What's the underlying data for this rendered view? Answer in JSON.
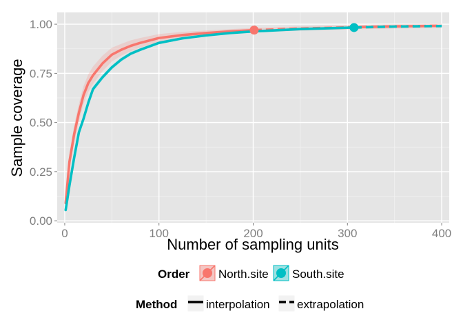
{
  "chart_data": {
    "type": "line",
    "xlabel": "Number of sampling units",
    "ylabel": "Sample coverage",
    "xlim": [
      -8,
      408
    ],
    "ylim": [
      -0.01,
      1.06
    ],
    "x_ticks": [
      0,
      100,
      200,
      300,
      400
    ],
    "x_tick_labels": [
      "0",
      "100",
      "200",
      "300",
      "400"
    ],
    "y_ticks": [
      0,
      0.25,
      0.5,
      0.75,
      1.0
    ],
    "y_tick_labels": [
      "0.00",
      "0.25",
      "0.50",
      "0.75",
      "1.00"
    ],
    "grid": true,
    "legend_placement": "bottom",
    "legends": {
      "order": {
        "title": "Order",
        "items": [
          "North.site",
          "South.site"
        ]
      },
      "method": {
        "title": "Method",
        "items": [
          "interpolation",
          "extrapolation"
        ]
      }
    },
    "series": [
      {
        "name": "North.site",
        "color": "#f8766d",
        "observed": {
          "x": 201,
          "y": 0.97
        },
        "interpolation": {
          "x": [
            1,
            5,
            10,
            15,
            20,
            25,
            30,
            40,
            50,
            60,
            70,
            80,
            100,
            125,
            150,
            175,
            201
          ],
          "y": [
            0.09,
            0.3,
            0.44,
            0.55,
            0.64,
            0.7,
            0.74,
            0.8,
            0.845,
            0.87,
            0.89,
            0.905,
            0.93,
            0.945,
            0.955,
            0.963,
            0.97
          ]
        },
        "extrapolation": {
          "x": [
            201,
            250,
            300,
            350,
            400
          ],
          "y": [
            0.97,
            0.978,
            0.984,
            0.989,
            0.992
          ]
        },
        "ci_halfwidth": [
          0.03,
          0.04,
          0.045,
          0.045,
          0.045,
          0.045,
          0.045,
          0.04,
          0.035,
          0.03,
          0.028,
          0.025,
          0.02,
          0.016,
          0.013,
          0.012,
          0.011
        ]
      },
      {
        "name": "South.site",
        "color": "#00bfc4",
        "observed": {
          "x": 307,
          "y": 0.983
        },
        "interpolation": {
          "x": [
            1,
            5,
            10,
            15,
            20,
            25,
            30,
            40,
            50,
            60,
            70,
            80,
            100,
            125,
            150,
            175,
            200,
            250,
            307
          ],
          "y": [
            0.055,
            0.18,
            0.32,
            0.45,
            0.52,
            0.6,
            0.67,
            0.73,
            0.78,
            0.82,
            0.85,
            0.87,
            0.905,
            0.928,
            0.943,
            0.955,
            0.963,
            0.975,
            0.983
          ]
        },
        "extrapolation": {
          "x": [
            307,
            350,
            400
          ],
          "y": [
            0.983,
            0.988,
            0.991
          ]
        },
        "ci_halfwidth": [
          0.012,
          0.015,
          0.015,
          0.015,
          0.015,
          0.014,
          0.013,
          0.012,
          0.011,
          0.01,
          0.009,
          0.008,
          0.007,
          0.006,
          0.005,
          0.005,
          0.004,
          0.004,
          0.003
        ]
      }
    ]
  }
}
